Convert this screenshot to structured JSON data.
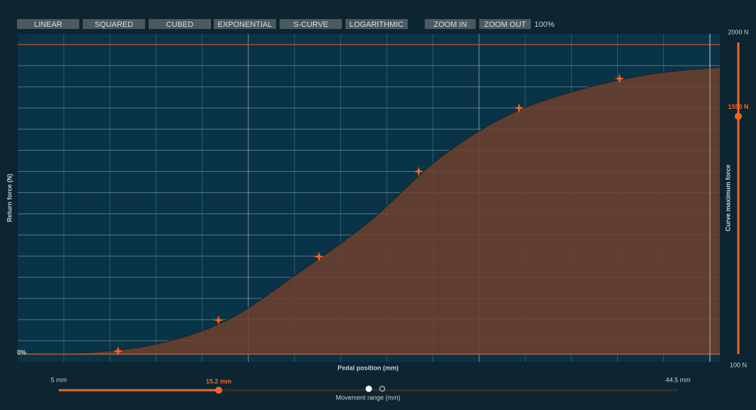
{
  "toolbar": {
    "curve_buttons": [
      "LINEAR",
      "SQUARED",
      "CUBED",
      "EXPONENTIAL",
      "S-CURVE",
      "LOGARITHMIC"
    ],
    "zoom_buttons": [
      "ZOOM IN",
      "ZOOM OUT"
    ],
    "zoom_level": "100%"
  },
  "chart": {
    "y_axis_label": "Return force (N)",
    "x_axis_label": "Pedal position (mm)",
    "xlim": [
      0,
      100
    ],
    "ylim": [
      0,
      100
    ],
    "yticks": [
      {
        "value": 0,
        "label": "0%"
      }
    ],
    "curve": {
      "x": [
        0,
        10,
        20,
        30,
        40,
        50,
        60,
        70,
        80,
        90,
        100
      ],
      "y": [
        0,
        0.5,
        3.4,
        11.2,
        26.3,
        42.7,
        63.2,
        77.4,
        85.4,
        90.4,
        92.7
      ]
    },
    "points": {
      "x": [
        14.3,
        28.6,
        42.9,
        57.1,
        71.4,
        85.7
      ],
      "y": [
        1,
        11,
        31.5,
        59,
        79.5,
        89
      ]
    }
  },
  "max_force": {
    "label": "Curve maximum force",
    "min": {
      "value": 100,
      "label": "100 N"
    },
    "max": {
      "value": 2000,
      "label": "2000 N"
    },
    "value": {
      "value": 1550,
      "label": "1550 N"
    }
  },
  "movement_range": {
    "label": "Movement range (mm)",
    "min": {
      "value": 5,
      "label": "5 mm"
    },
    "max": {
      "value": 44.5,
      "label": "44.5 mm"
    },
    "value": {
      "value": 15.2,
      "label": "15.2 mm"
    }
  }
}
